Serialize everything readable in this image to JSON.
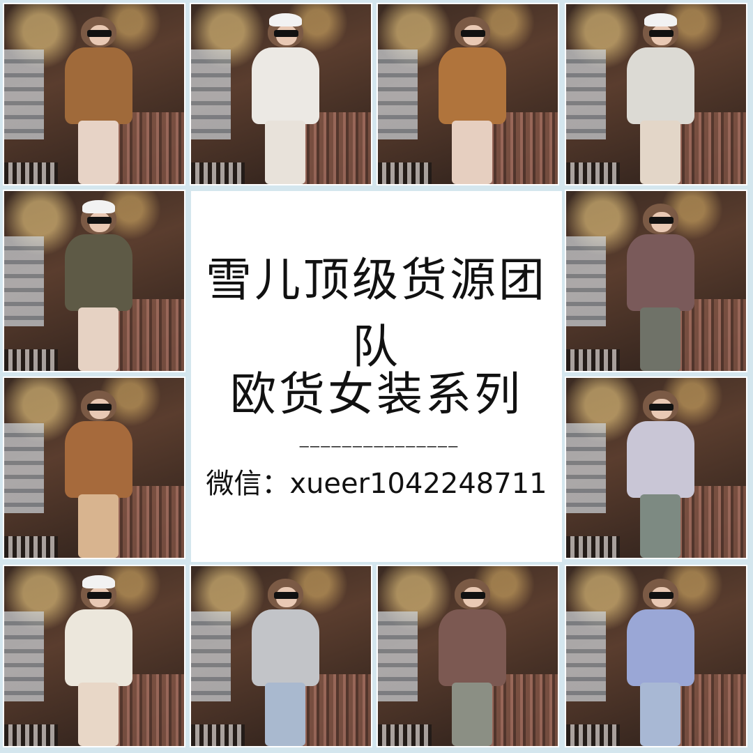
{
  "center": {
    "title_line1": "雪儿顶级货源团队",
    "title_line2": "欧货女装系列",
    "divider": "———————————————",
    "wechat_label": "微信：",
    "wechat_id": "xueer1042248711"
  },
  "tiles": [
    {
      "coat": "#a06a3a",
      "legs": "#e7d3c6",
      "hat": false
    },
    {
      "coat": "#ece9e4",
      "legs": "#e8e2da",
      "hat": true
    },
    {
      "coat": "#b0743c",
      "legs": "#e6cfc0",
      "hat": false
    },
    {
      "coat": "#dcdad4",
      "legs": "#e3d6c8",
      "hat": true
    },
    {
      "coat": "#5e5a46",
      "legs": "#e6d2c3",
      "hat": true
    },
    {
      "coat": "#7a5a5a",
      "legs": "#6f7268",
      "hat": false
    },
    {
      "coat": "#a66a3c",
      "legs": "#d8b48f",
      "hat": false
    },
    {
      "coat": "#c9c6d6",
      "legs": "#7d8a82",
      "hat": false
    },
    {
      "coat": "#ece7dc",
      "legs": "#e8d7c7",
      "hat": true
    },
    {
      "coat": "#c2c4c8",
      "legs": "#a9b9cf",
      "hat": false
    },
    {
      "coat": "#7c5952",
      "legs": "#8b8f84",
      "hat": false
    },
    {
      "coat": "#9aa7d6",
      "legs": "#a8b8d4",
      "hat": false
    }
  ]
}
